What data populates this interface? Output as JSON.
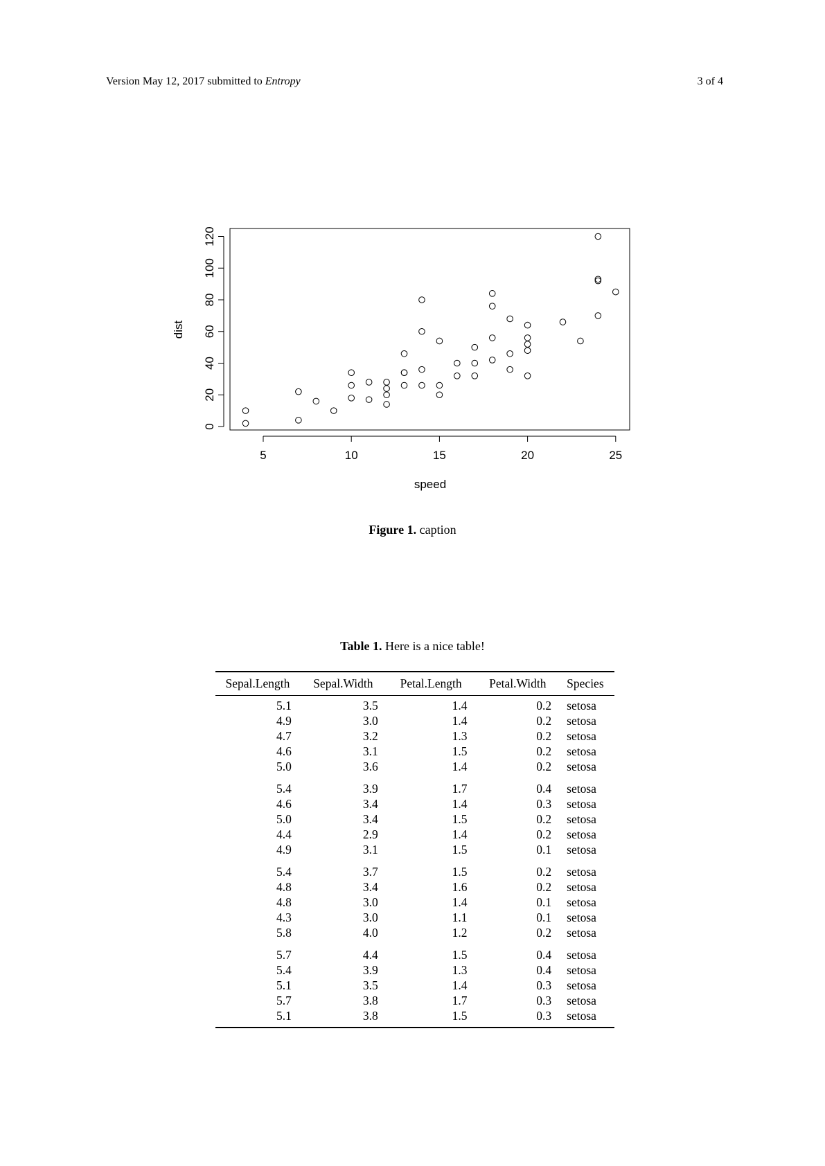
{
  "header": {
    "left_text": "Version May 12, 2017 submitted to ",
    "journal": "Entropy",
    "page_info": "3 of 4"
  },
  "figure": {
    "label": "Figure 1.",
    "caption": "caption"
  },
  "chart_data": {
    "type": "scatter",
    "title": "",
    "xlabel": "speed",
    "ylabel": "dist",
    "xlim": [
      4,
      25
    ],
    "ylim": [
      0,
      120
    ],
    "xticks": [
      5,
      10,
      15,
      20,
      25
    ],
    "yticks": [
      0,
      20,
      40,
      60,
      80,
      100,
      120
    ],
    "grid": false,
    "marker": "open-circle",
    "points": [
      {
        "x": 4,
        "y": 2
      },
      {
        "x": 4,
        "y": 10
      },
      {
        "x": 7,
        "y": 4
      },
      {
        "x": 7,
        "y": 22
      },
      {
        "x": 8,
        "y": 16
      },
      {
        "x": 9,
        "y": 10
      },
      {
        "x": 10,
        "y": 18
      },
      {
        "x": 10,
        "y": 26
      },
      {
        "x": 10,
        "y": 34
      },
      {
        "x": 11,
        "y": 17
      },
      {
        "x": 11,
        "y": 28
      },
      {
        "x": 12,
        "y": 14
      },
      {
        "x": 12,
        "y": 20
      },
      {
        "x": 12,
        "y": 24
      },
      {
        "x": 12,
        "y": 28
      },
      {
        "x": 13,
        "y": 26
      },
      {
        "x": 13,
        "y": 34
      },
      {
        "x": 13,
        "y": 34
      },
      {
        "x": 13,
        "y": 46
      },
      {
        "x": 14,
        "y": 26
      },
      {
        "x": 14,
        "y": 36
      },
      {
        "x": 14,
        "y": 60
      },
      {
        "x": 14,
        "y": 80
      },
      {
        "x": 15,
        "y": 20
      },
      {
        "x": 15,
        "y": 26
      },
      {
        "x": 15,
        "y": 54
      },
      {
        "x": 16,
        "y": 32
      },
      {
        "x": 16,
        "y": 40
      },
      {
        "x": 17,
        "y": 32
      },
      {
        "x": 17,
        "y": 40
      },
      {
        "x": 17,
        "y": 50
      },
      {
        "x": 18,
        "y": 42
      },
      {
        "x": 18,
        "y": 56
      },
      {
        "x": 18,
        "y": 76
      },
      {
        "x": 18,
        "y": 84
      },
      {
        "x": 19,
        "y": 36
      },
      {
        "x": 19,
        "y": 46
      },
      {
        "x": 19,
        "y": 68
      },
      {
        "x": 20,
        "y": 32
      },
      {
        "x": 20,
        "y": 48
      },
      {
        "x": 20,
        "y": 52
      },
      {
        "x": 20,
        "y": 56
      },
      {
        "x": 20,
        "y": 64
      },
      {
        "x": 22,
        "y": 66
      },
      {
        "x": 23,
        "y": 54
      },
      {
        "x": 24,
        "y": 70
      },
      {
        "x": 24,
        "y": 92
      },
      {
        "x": 24,
        "y": 93
      },
      {
        "x": 24,
        "y": 120
      },
      {
        "x": 25,
        "y": 85
      }
    ]
  },
  "table": {
    "label": "Table 1.",
    "caption": "Here is a nice table!",
    "columns": [
      "Sepal.Length",
      "Sepal.Width",
      "Petal.Length",
      "Petal.Width",
      "Species"
    ],
    "rows": [
      [
        "5.1",
        "3.5",
        "1.4",
        "0.2",
        "setosa"
      ],
      [
        "4.9",
        "3.0",
        "1.4",
        "0.2",
        "setosa"
      ],
      [
        "4.7",
        "3.2",
        "1.3",
        "0.2",
        "setosa"
      ],
      [
        "4.6",
        "3.1",
        "1.5",
        "0.2",
        "setosa"
      ],
      [
        "5.0",
        "3.6",
        "1.4",
        "0.2",
        "setosa"
      ],
      [
        "5.4",
        "3.9",
        "1.7",
        "0.4",
        "setosa"
      ],
      [
        "4.6",
        "3.4",
        "1.4",
        "0.3",
        "setosa"
      ],
      [
        "5.0",
        "3.4",
        "1.5",
        "0.2",
        "setosa"
      ],
      [
        "4.4",
        "2.9",
        "1.4",
        "0.2",
        "setosa"
      ],
      [
        "4.9",
        "3.1",
        "1.5",
        "0.1",
        "setosa"
      ],
      [
        "5.4",
        "3.7",
        "1.5",
        "0.2",
        "setosa"
      ],
      [
        "4.8",
        "3.4",
        "1.6",
        "0.2",
        "setosa"
      ],
      [
        "4.8",
        "3.0",
        "1.4",
        "0.1",
        "setosa"
      ],
      [
        "4.3",
        "3.0",
        "1.1",
        "0.1",
        "setosa"
      ],
      [
        "5.8",
        "4.0",
        "1.2",
        "0.2",
        "setosa"
      ],
      [
        "5.7",
        "4.4",
        "1.5",
        "0.4",
        "setosa"
      ],
      [
        "5.4",
        "3.9",
        "1.3",
        "0.4",
        "setosa"
      ],
      [
        "5.1",
        "3.5",
        "1.4",
        "0.3",
        "setosa"
      ],
      [
        "5.7",
        "3.8",
        "1.7",
        "0.3",
        "setosa"
      ],
      [
        "5.1",
        "3.8",
        "1.5",
        "0.3",
        "setosa"
      ]
    ]
  }
}
